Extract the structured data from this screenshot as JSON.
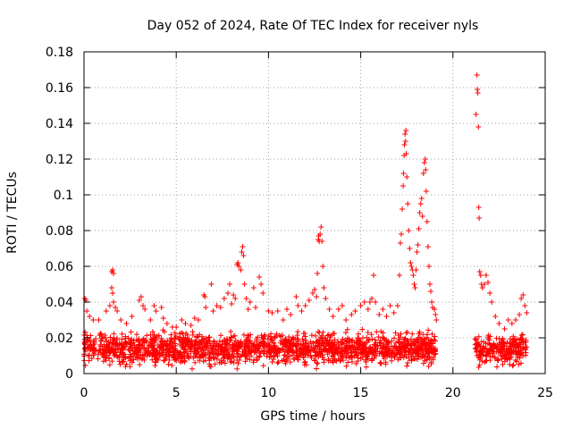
{
  "chart_data": {
    "type": "scatter",
    "title": "Day 052 of 2024, Rate Of TEC Index for receiver nyls",
    "xlabel": "GPS time / hours",
    "ylabel": "ROTI / TECUs",
    "xlim": [
      0,
      25
    ],
    "ylim": [
      0,
      0.18
    ],
    "xticks": [
      0,
      5,
      10,
      15,
      20,
      25
    ],
    "xtick_labels": [
      "0",
      "5",
      "10",
      "15",
      "20",
      "25"
    ],
    "yticks": [
      0,
      0.02,
      0.04,
      0.06,
      0.08,
      0.1,
      0.12,
      0.14,
      0.16,
      0.18
    ],
    "ytick_labels": [
      "0",
      "0.02",
      "0.04",
      "0.06",
      "0.08",
      "0.1",
      "0.12",
      "0.14",
      "0.16",
      "0.18"
    ],
    "grid": true,
    "marker": "+",
    "color": "#ff0000",
    "series": [
      {
        "name": "ROTI",
        "baseline_segments": [
          {
            "x_start": 0.0,
            "x_end": 19.1,
            "y_min": 0.002,
            "y_max": 0.026
          },
          {
            "x_start": 21.2,
            "x_end": 24.0,
            "y_min": 0.002,
            "y_max": 0.024
          }
        ],
        "points": [
          [
            0.05,
            0.042
          ],
          [
            0.1,
            0.041
          ],
          [
            0.15,
            0.035
          ],
          [
            0.3,
            0.032
          ],
          [
            0.5,
            0.03
          ],
          [
            0.8,
            0.03
          ],
          [
            1.2,
            0.035
          ],
          [
            1.5,
            0.057
          ],
          [
            1.55,
            0.058
          ],
          [
            1.6,
            0.056
          ],
          [
            1.5,
            0.048
          ],
          [
            1.55,
            0.045
          ],
          [
            1.6,
            0.04
          ],
          [
            1.4,
            0.038
          ],
          [
            1.7,
            0.037
          ],
          [
            1.8,
            0.035
          ],
          [
            2.0,
            0.03
          ],
          [
            2.3,
            0.028
          ],
          [
            2.6,
            0.032
          ],
          [
            3.0,
            0.041
          ],
          [
            3.1,
            0.043
          ],
          [
            3.2,
            0.038
          ],
          [
            3.3,
            0.036
          ],
          [
            3.6,
            0.03
          ],
          [
            3.8,
            0.038
          ],
          [
            3.9,
            0.035
          ],
          [
            4.2,
            0.037
          ],
          [
            4.3,
            0.031
          ],
          [
            4.5,
            0.028
          ],
          [
            4.8,
            0.026
          ],
          [
            5.0,
            0.026
          ],
          [
            5.3,
            0.03
          ],
          [
            5.5,
            0.028
          ],
          [
            5.8,
            0.027
          ],
          [
            6.0,
            0.031
          ],
          [
            6.2,
            0.03
          ],
          [
            6.5,
            0.044
          ],
          [
            6.55,
            0.043
          ],
          [
            6.6,
            0.037
          ],
          [
            6.9,
            0.05
          ],
          [
            7.0,
            0.035
          ],
          [
            7.2,
            0.038
          ],
          [
            7.4,
            0.037
          ],
          [
            7.6,
            0.042
          ],
          [
            7.8,
            0.045
          ],
          [
            7.9,
            0.05
          ],
          [
            8.0,
            0.039
          ],
          [
            8.1,
            0.044
          ],
          [
            8.2,
            0.042
          ],
          [
            8.3,
            0.061
          ],
          [
            8.35,
            0.062
          ],
          [
            8.4,
            0.06
          ],
          [
            8.5,
            0.058
          ],
          [
            8.55,
            0.068
          ],
          [
            8.6,
            0.071
          ],
          [
            8.65,
            0.066
          ],
          [
            8.7,
            0.05
          ],
          [
            8.8,
            0.042
          ],
          [
            8.9,
            0.036
          ],
          [
            9.0,
            0.04
          ],
          [
            9.2,
            0.048
          ],
          [
            9.3,
            0.037
          ],
          [
            9.5,
            0.054
          ],
          [
            9.6,
            0.05
          ],
          [
            9.7,
            0.045
          ],
          [
            10.0,
            0.035
          ],
          [
            10.2,
            0.034
          ],
          [
            10.5,
            0.035
          ],
          [
            10.8,
            0.03
          ],
          [
            11.0,
            0.036
          ],
          [
            11.2,
            0.033
          ],
          [
            11.5,
            0.043
          ],
          [
            11.6,
            0.038
          ],
          [
            11.8,
            0.035
          ],
          [
            12.0,
            0.038
          ],
          [
            12.2,
            0.041
          ],
          [
            12.4,
            0.045
          ],
          [
            12.5,
            0.047
          ],
          [
            12.6,
            0.043
          ],
          [
            12.65,
            0.056
          ],
          [
            12.7,
            0.075
          ],
          [
            12.72,
            0.077
          ],
          [
            12.75,
            0.074
          ],
          [
            12.8,
            0.078
          ],
          [
            12.85,
            0.082
          ],
          [
            12.9,
            0.074
          ],
          [
            12.95,
            0.06
          ],
          [
            13.0,
            0.048
          ],
          [
            13.1,
            0.042
          ],
          [
            13.3,
            0.036
          ],
          [
            13.5,
            0.032
          ],
          [
            13.8,
            0.036
          ],
          [
            14.0,
            0.038
          ],
          [
            14.2,
            0.03
          ],
          [
            14.5,
            0.033
          ],
          [
            14.7,
            0.035
          ],
          [
            15.0,
            0.038
          ],
          [
            15.2,
            0.04
          ],
          [
            15.4,
            0.036
          ],
          [
            15.5,
            0.04
          ],
          [
            15.6,
            0.042
          ],
          [
            15.7,
            0.055
          ],
          [
            15.8,
            0.04
          ],
          [
            16.0,
            0.033
          ],
          [
            16.2,
            0.036
          ],
          [
            16.4,
            0.032
          ],
          [
            16.6,
            0.038
          ],
          [
            16.8,
            0.034
          ],
          [
            17.0,
            0.038
          ],
          [
            17.1,
            0.055
          ],
          [
            17.15,
            0.073
          ],
          [
            17.2,
            0.078
          ],
          [
            17.25,
            0.092
          ],
          [
            17.3,
            0.105
          ],
          [
            17.32,
            0.112
          ],
          [
            17.35,
            0.122
          ],
          [
            17.37,
            0.128
          ],
          [
            17.4,
            0.134
          ],
          [
            17.43,
            0.13
          ],
          [
            17.45,
            0.136
          ],
          [
            17.47,
            0.123
          ],
          [
            17.5,
            0.11
          ],
          [
            17.55,
            0.095
          ],
          [
            17.6,
            0.08
          ],
          [
            17.65,
            0.07
          ],
          [
            17.7,
            0.062
          ],
          [
            17.75,
            0.06
          ],
          [
            17.8,
            0.058
          ],
          [
            17.85,
            0.055
          ],
          [
            17.9,
            0.05
          ],
          [
            17.95,
            0.048
          ],
          [
            18.0,
            0.058
          ],
          [
            18.05,
            0.068
          ],
          [
            18.1,
            0.072
          ],
          [
            18.15,
            0.081
          ],
          [
            18.2,
            0.09
          ],
          [
            18.25,
            0.095
          ],
          [
            18.3,
            0.098
          ],
          [
            18.35,
            0.088
          ],
          [
            18.4,
            0.112
          ],
          [
            18.45,
            0.118
          ],
          [
            18.5,
            0.12
          ],
          [
            18.52,
            0.114
          ],
          [
            18.55,
            0.102
          ],
          [
            18.6,
            0.085
          ],
          [
            18.65,
            0.071
          ],
          [
            18.7,
            0.06
          ],
          [
            18.75,
            0.05
          ],
          [
            18.8,
            0.046
          ],
          [
            18.85,
            0.04
          ],
          [
            18.9,
            0.037
          ],
          [
            19.0,
            0.036
          ],
          [
            19.05,
            0.033
          ],
          [
            19.1,
            0.03
          ],
          [
            21.25,
            0.145
          ],
          [
            21.3,
            0.167
          ],
          [
            21.32,
            0.159
          ],
          [
            21.35,
            0.157
          ],
          [
            21.38,
            0.138
          ],
          [
            21.4,
            0.093
          ],
          [
            21.42,
            0.087
          ],
          [
            21.45,
            0.057
          ],
          [
            21.5,
            0.055
          ],
          [
            21.55,
            0.05
          ],
          [
            21.6,
            0.048
          ],
          [
            21.7,
            0.05
          ],
          [
            21.8,
            0.055
          ],
          [
            21.9,
            0.051
          ],
          [
            22.0,
            0.045
          ],
          [
            22.1,
            0.04
          ],
          [
            22.3,
            0.032
          ],
          [
            22.5,
            0.028
          ],
          [
            22.8,
            0.025
          ],
          [
            23.0,
            0.03
          ],
          [
            23.2,
            0.028
          ],
          [
            23.4,
            0.03
          ],
          [
            23.6,
            0.033
          ],
          [
            23.7,
            0.042
          ],
          [
            23.8,
            0.044
          ],
          [
            23.9,
            0.038
          ],
          [
            24.0,
            0.034
          ]
        ]
      }
    ]
  }
}
